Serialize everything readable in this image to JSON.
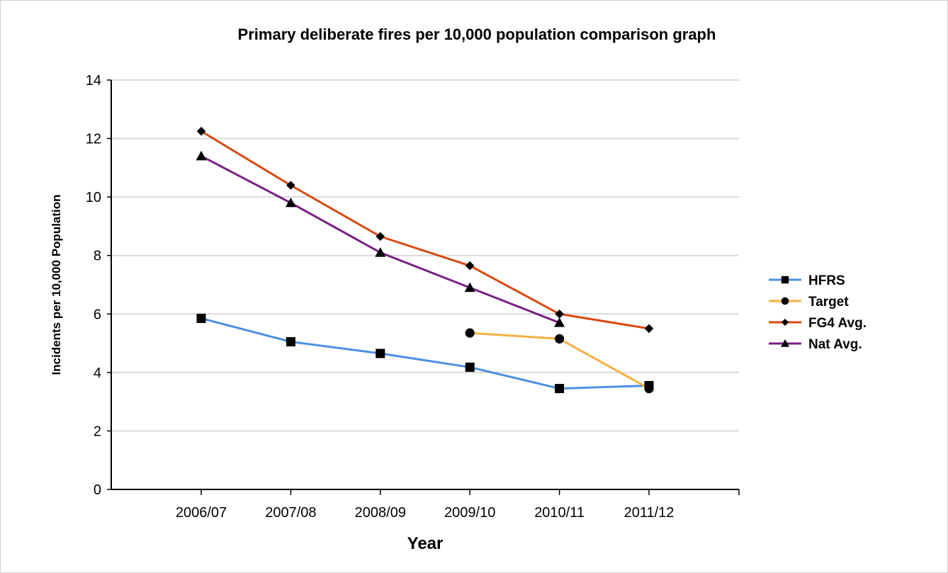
{
  "chart_data": {
    "type": "line",
    "title": "Primary deliberate fires per 10,000 population comparison graph",
    "xlabel": "Year",
    "ylabel": "Incidents per 10,000 Population",
    "categories": [
      "2006/07",
      "2007/08",
      "2008/09",
      "2009/10",
      "2010/11",
      "2011/12"
    ],
    "ylim": [
      0,
      14
    ],
    "yticks": [
      0,
      2,
      4,
      6,
      8,
      10,
      12,
      14
    ],
    "grid": true,
    "legend_position": "right",
    "series": [
      {
        "name": "HFRS",
        "color": "#4a90e2",
        "marker": "square",
        "values": [
          5.85,
          5.05,
          4.65,
          4.18,
          3.45,
          3.55
        ]
      },
      {
        "name": "Target",
        "color": "#f5b041",
        "marker": "circle",
        "values": [
          null,
          null,
          null,
          5.35,
          5.15,
          3.45
        ]
      },
      {
        "name": "FG4 Avg.",
        "color": "#d9480f",
        "marker": "diamond",
        "values": [
          12.25,
          10.4,
          8.65,
          7.65,
          6.0,
          5.5
        ]
      },
      {
        "name": "Nat Avg.",
        "color": "#7a1f86",
        "marker": "triangle",
        "values": [
          11.4,
          9.8,
          8.1,
          6.9,
          5.7,
          null
        ]
      }
    ]
  }
}
